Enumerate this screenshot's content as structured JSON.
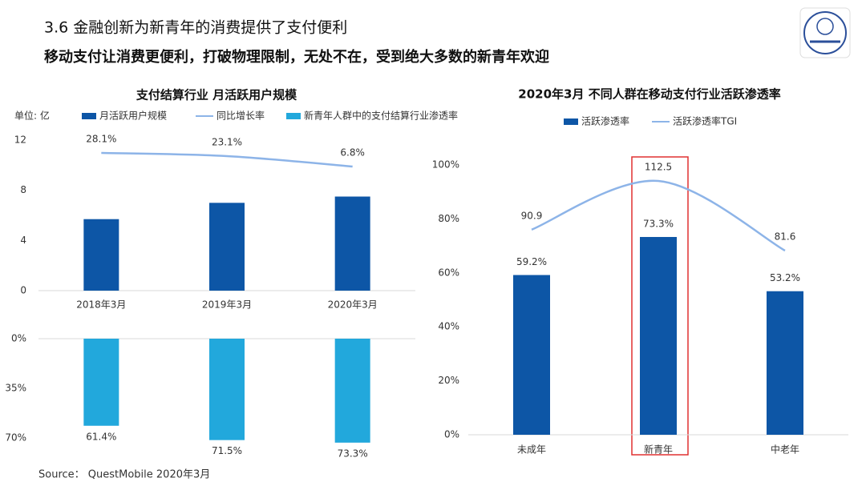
{
  "header": {
    "title": "3.6 金融创新为新青年的消费提供了支付便利",
    "subtitle": "移动支付让消费更便利，打破物理限制，无处不在，受到绝大多数的新青年欢迎"
  },
  "source": "Source：  QuestMobile 2020年3月",
  "chart_data": [
    {
      "type": "bar",
      "title": "支付结算行业 月活跃用户规模",
      "unit": "单位: 亿",
      "categories": [
        "2018年3月",
        "2019年3月",
        "2020年3月"
      ],
      "series": [
        {
          "name": "月活跃用户规模",
          "type": "bar",
          "color": "#0d56a6",
          "values": [
            5.7,
            7.0,
            7.5
          ]
        },
        {
          "name": "同比增长率",
          "type": "line",
          "smooth": true,
          "color": "#8db4e8",
          "values": [
            28.1,
            23.1,
            6.8
          ],
          "value_labels": [
            "28.1%",
            "23.1%",
            "6.8%"
          ]
        },
        {
          "name": "新青年人群中的支付结算行业渗透率",
          "type": "bar",
          "axis": "y2",
          "color": "#22a8dc",
          "values": [
            61.4,
            71.5,
            73.3
          ],
          "value_labels": [
            "61.4%",
            "71.5%",
            "73.3%"
          ]
        }
      ],
      "ylim": [
        0,
        12
      ],
      "yticks": [
        0,
        4,
        8,
        12
      ],
      "y2lim": [
        0,
        70
      ],
      "y2ticks": [
        {
          "value": 0,
          "label": "0%"
        },
        {
          "value": 35,
          "label": "35%"
        },
        {
          "value": 70,
          "label": "70%"
        }
      ]
    },
    {
      "type": "bar",
      "title": "2020年3月 不同人群在移动支付行业活跃渗透率",
      "categories": [
        "未成年",
        "新青年",
        "中老年"
      ],
      "series": [
        {
          "name": "活跃渗透率",
          "type": "bar",
          "color": "#0d56a6",
          "values": [
            59.2,
            73.3,
            53.2
          ],
          "value_labels": [
            "59.2%",
            "73.3%",
            "53.2%"
          ]
        },
        {
          "name": "活跃渗透率TGI",
          "type": "line",
          "smooth": true,
          "color": "#8db4e8",
          "values": [
            90.9,
            112.5,
            81.6
          ]
        }
      ],
      "ylim": [
        0,
        100
      ],
      "yticks": [
        {
          "value": 0,
          "label": "0%"
        },
        {
          "value": 20,
          "label": "20%"
        },
        {
          "value": 40,
          "label": "40%"
        },
        {
          "value": 60,
          "label": "60%"
        },
        {
          "value": 80,
          "label": "80%"
        },
        {
          "value": 100,
          "label": "100%"
        }
      ]
    }
  ]
}
